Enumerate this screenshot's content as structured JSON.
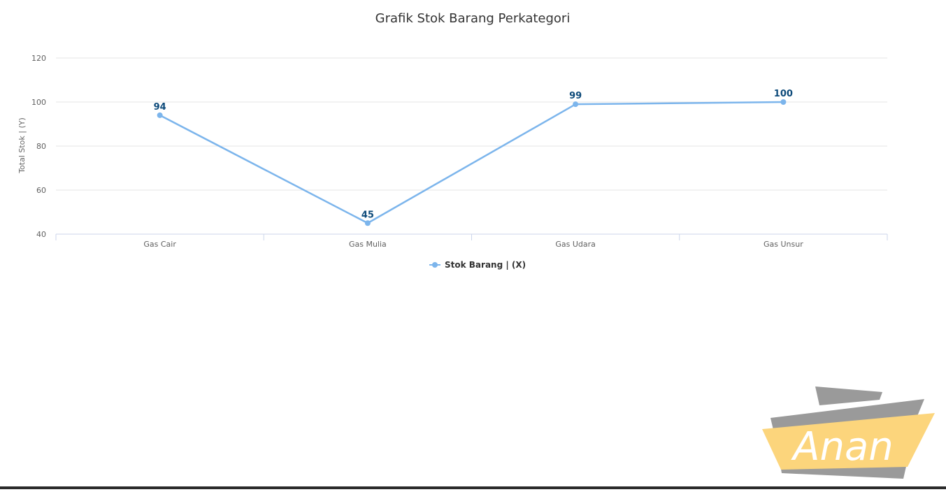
{
  "chart_data": {
    "type": "line",
    "title": "Grafik Stok Barang Perkategori",
    "xlabel": "",
    "ylabel": "Total Stok | (Y)",
    "categories": [
      "Gas Cair",
      "Gas Mulia",
      "Gas Udara",
      "Gas Unsur"
    ],
    "series": [
      {
        "name": "Stok Barang | (X)",
        "values": [
          94,
          45,
          99,
          100
        ],
        "color": "#7cb5ec"
      }
    ],
    "ylim": [
      40,
      120
    ],
    "yticks": [
      40,
      60,
      80,
      100,
      120
    ],
    "grid": true,
    "legend_position": "bottom-center",
    "data_labels": true
  },
  "watermark": {
    "text": "Anan"
  },
  "colors": {
    "series": "#7cb5ec",
    "data_label": "#0d4a7a",
    "grid": "#e6e6e6",
    "axis": "#ccd6eb",
    "watermark_ribbon": "#fcd57c",
    "watermark_shadow": "#9a9a9a"
  }
}
